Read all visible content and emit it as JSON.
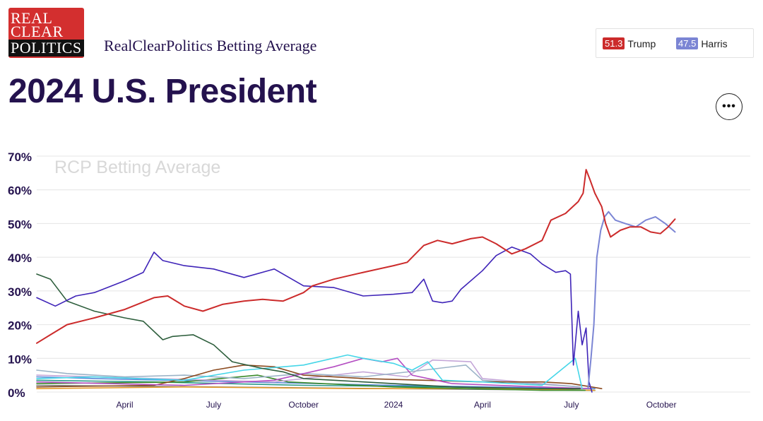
{
  "logo": {
    "lines": [
      "REAL",
      "CLEAR",
      "POLITICS"
    ]
  },
  "header": {
    "subtitle": "RealClearPolitics Betting Average",
    "title": "2024 U.S. President"
  },
  "legend": [
    {
      "value": "51.3",
      "name": "Trump",
      "color": "#cc2b2b"
    },
    {
      "value": "47.5",
      "name": "Harris",
      "color": "#7b85d4"
    }
  ],
  "more_button": {
    "icon": "ellipsis-icon",
    "label": "•••"
  },
  "chart_data": {
    "type": "line",
    "title": "",
    "watermark": "RCP Betting Average",
    "xlabel": "",
    "ylabel": "",
    "ylim": [
      0,
      70
    ],
    "y_ticks": [
      0,
      10,
      20,
      30,
      40,
      50,
      60,
      70
    ],
    "y_tick_labels": [
      "0%",
      "10%",
      "20%",
      "30%",
      "40%",
      "50%",
      "60%",
      "70%"
    ],
    "x_range": [
      "2023-01-01",
      "2024-12-31"
    ],
    "x_ticks": [
      {
        "date": "2023-04-01",
        "label": "April"
      },
      {
        "date": "2023-07-01",
        "label": "July"
      },
      {
        "date": "2023-10-01",
        "label": "October"
      },
      {
        "date": "2024-01-01",
        "label": "2024"
      },
      {
        "date": "2024-04-01",
        "label": "April"
      },
      {
        "date": "2024-07-01",
        "label": "July"
      },
      {
        "date": "2024-10-01",
        "label": "October"
      }
    ],
    "grid": true,
    "series": [
      {
        "name": "Trump",
        "color": "#cc2b2b",
        "points": [
          [
            "2023-01-01",
            14.5
          ],
          [
            "2023-01-15",
            17
          ],
          [
            "2023-02-01",
            20
          ],
          [
            "2023-03-01",
            22
          ],
          [
            "2023-04-01",
            24.5
          ],
          [
            "2023-05-01",
            28
          ],
          [
            "2023-05-15",
            28.5
          ],
          [
            "2023-06-01",
            25.5
          ],
          [
            "2023-06-20",
            24
          ],
          [
            "2023-07-10",
            26
          ],
          [
            "2023-08-01",
            27
          ],
          [
            "2023-08-20",
            27.5
          ],
          [
            "2023-09-10",
            27
          ],
          [
            "2023-10-01",
            29.5
          ],
          [
            "2023-10-10",
            31.5
          ],
          [
            "2023-11-01",
            33.5
          ],
          [
            "2023-12-01",
            35.5
          ],
          [
            "2024-01-01",
            37.5
          ],
          [
            "2024-01-15",
            38.5
          ],
          [
            "2024-02-01",
            43.5
          ],
          [
            "2024-02-15",
            45
          ],
          [
            "2024-03-01",
            44
          ],
          [
            "2024-03-20",
            45.5
          ],
          [
            "2024-04-01",
            46
          ],
          [
            "2024-04-15",
            44
          ],
          [
            "2024-05-01",
            41
          ],
          [
            "2024-05-15",
            42.5
          ],
          [
            "2024-06-01",
            45
          ],
          [
            "2024-06-10",
            51
          ],
          [
            "2024-06-25",
            53
          ],
          [
            "2024-07-08",
            56.5
          ],
          [
            "2024-07-13",
            59
          ],
          [
            "2024-07-16",
            66
          ],
          [
            "2024-07-20",
            63
          ],
          [
            "2024-07-25",
            59
          ],
          [
            "2024-08-01",
            55
          ],
          [
            "2024-08-05",
            50
          ],
          [
            "2024-08-10",
            46
          ],
          [
            "2024-08-20",
            48
          ],
          [
            "2024-08-30",
            49
          ],
          [
            "2024-09-10",
            49
          ],
          [
            "2024-09-20",
            47.5
          ],
          [
            "2024-09-30",
            47
          ],
          [
            "2024-10-08",
            49
          ],
          [
            "2024-10-15",
            51.3
          ]
        ]
      },
      {
        "name": "Harris",
        "color": "#7b85d4",
        "points": [
          [
            "2024-07-18",
            1
          ],
          [
            "2024-07-21",
            10
          ],
          [
            "2024-07-24",
            20
          ],
          [
            "2024-07-27",
            40
          ],
          [
            "2024-07-31",
            48
          ],
          [
            "2024-08-04",
            52
          ],
          [
            "2024-08-08",
            53.5
          ],
          [
            "2024-08-15",
            51
          ],
          [
            "2024-08-25",
            50
          ],
          [
            "2024-09-05",
            49
          ],
          [
            "2024-09-15",
            51
          ],
          [
            "2024-09-25",
            52
          ],
          [
            "2024-10-05",
            50
          ],
          [
            "2024-10-15",
            47.5
          ]
        ]
      },
      {
        "color": "#3f24b8",
        "points": [
          [
            "2023-01-01",
            28
          ],
          [
            "2023-01-20",
            25.5
          ],
          [
            "2023-02-10",
            28.5
          ],
          [
            "2023-03-01",
            29.5
          ],
          [
            "2023-04-01",
            33
          ],
          [
            "2023-04-20",
            35.5
          ],
          [
            "2023-05-01",
            41.5
          ],
          [
            "2023-05-10",
            39
          ],
          [
            "2023-06-01",
            37.5
          ],
          [
            "2023-07-01",
            36.5
          ],
          [
            "2023-08-01",
            34
          ],
          [
            "2023-09-01",
            36.5
          ],
          [
            "2023-10-01",
            31.5
          ],
          [
            "2023-11-01",
            31
          ],
          [
            "2023-12-01",
            28.5
          ],
          [
            "2024-01-01",
            29
          ],
          [
            "2024-01-20",
            29.5
          ],
          [
            "2024-02-01",
            33.5
          ],
          [
            "2024-02-10",
            27
          ],
          [
            "2024-02-20",
            26.5
          ],
          [
            "2024-03-01",
            27
          ],
          [
            "2024-03-10",
            30.5
          ],
          [
            "2024-04-01",
            36
          ],
          [
            "2024-04-15",
            40.5
          ],
          [
            "2024-05-01",
            43
          ],
          [
            "2024-05-20",
            41
          ],
          [
            "2024-06-01",
            38
          ],
          [
            "2024-06-15",
            35.5
          ],
          [
            "2024-06-25",
            36
          ],
          [
            "2024-06-30",
            35
          ],
          [
            "2024-07-03",
            8
          ],
          [
            "2024-07-08",
            24
          ],
          [
            "2024-07-12",
            14
          ],
          [
            "2024-07-16",
            19
          ],
          [
            "2024-07-19",
            3
          ],
          [
            "2024-07-22",
            0
          ]
        ]
      },
      {
        "color": "#2d5e3c",
        "points": [
          [
            "2023-01-01",
            35
          ],
          [
            "2023-01-15",
            33.5
          ],
          [
            "2023-02-01",
            27
          ],
          [
            "2023-03-01",
            24
          ],
          [
            "2023-04-01",
            22
          ],
          [
            "2023-04-20",
            21
          ],
          [
            "2023-05-10",
            15.5
          ],
          [
            "2023-05-20",
            16.5
          ],
          [
            "2023-06-10",
            17
          ],
          [
            "2023-07-01",
            14
          ],
          [
            "2023-07-20",
            9
          ],
          [
            "2023-08-20",
            7
          ],
          [
            "2023-09-10",
            6
          ],
          [
            "2023-10-01",
            4
          ],
          [
            "2023-11-01",
            3.5
          ],
          [
            "2024-01-01",
            2.5
          ],
          [
            "2024-03-01",
            1.5
          ],
          [
            "2024-06-01",
            1
          ],
          [
            "2024-07-10",
            1
          ]
        ]
      },
      {
        "color": "#45d6e8",
        "points": [
          [
            "2023-01-01",
            4
          ],
          [
            "2023-03-01",
            4.5
          ],
          [
            "2023-06-01",
            3.5
          ],
          [
            "2023-08-01",
            6.5
          ],
          [
            "2023-10-01",
            8
          ],
          [
            "2023-11-15",
            11
          ],
          [
            "2023-12-01",
            10
          ],
          [
            "2024-01-01",
            8.5
          ],
          [
            "2024-01-20",
            6.5
          ],
          [
            "2024-02-05",
            9
          ],
          [
            "2024-02-20",
            3.5
          ],
          [
            "2024-04-01",
            3
          ],
          [
            "2024-06-01",
            2
          ],
          [
            "2024-07-05",
            10
          ],
          [
            "2024-07-12",
            1
          ]
        ]
      },
      {
        "color": "#b44ec2",
        "points": [
          [
            "2023-01-01",
            3
          ],
          [
            "2023-06-01",
            2
          ],
          [
            "2023-09-01",
            3.5
          ],
          [
            "2023-11-01",
            7.5
          ],
          [
            "2023-12-01",
            10
          ],
          [
            "2023-12-20",
            9
          ],
          [
            "2024-01-05",
            10
          ],
          [
            "2024-01-20",
            5
          ],
          [
            "2024-03-01",
            2.5
          ],
          [
            "2024-06-01",
            1.5
          ],
          [
            "2024-07-20",
            1
          ]
        ]
      },
      {
        "color": "#8b4a1f",
        "points": [
          [
            "2023-01-01",
            1.5
          ],
          [
            "2023-05-01",
            2
          ],
          [
            "2023-06-01",
            4
          ],
          [
            "2023-07-01",
            6.5
          ],
          [
            "2023-08-01",
            8
          ],
          [
            "2023-09-01",
            7.5
          ],
          [
            "2023-10-01",
            5
          ],
          [
            "2023-12-01",
            4
          ],
          [
            "2024-02-01",
            3.5
          ],
          [
            "2024-04-01",
            3
          ],
          [
            "2024-06-01",
            3
          ],
          [
            "2024-07-01",
            2.5
          ],
          [
            "2024-08-01",
            1
          ]
        ]
      },
      {
        "color": "#9bb3c7",
        "points": [
          [
            "2023-01-01",
            6.5
          ],
          [
            "2023-02-01",
            5.5
          ],
          [
            "2023-04-01",
            4.5
          ],
          [
            "2023-06-01",
            5
          ],
          [
            "2023-08-01",
            4
          ],
          [
            "2023-10-01",
            5.5
          ],
          [
            "2023-12-01",
            4.5
          ],
          [
            "2024-02-01",
            6.5
          ],
          [
            "2024-03-15",
            8
          ],
          [
            "2024-04-01",
            3.5
          ],
          [
            "2024-07-10",
            1.5
          ]
        ]
      },
      {
        "color": "#c4a6d8",
        "points": [
          [
            "2023-01-01",
            5
          ],
          [
            "2023-05-01",
            4
          ],
          [
            "2023-09-01",
            3
          ],
          [
            "2023-12-01",
            6
          ],
          [
            "2024-01-15",
            4.5
          ],
          [
            "2024-02-10",
            9.5
          ],
          [
            "2024-03-20",
            9
          ],
          [
            "2024-04-01",
            4
          ],
          [
            "2024-07-10",
            1.5
          ]
        ]
      },
      {
        "color": "#3a8a2a",
        "points": [
          [
            "2023-01-01",
            2.5
          ],
          [
            "2023-06-01",
            3
          ],
          [
            "2023-08-15",
            5
          ],
          [
            "2023-09-15",
            3
          ],
          [
            "2024-01-01",
            1.5
          ],
          [
            "2024-06-01",
            0.5
          ],
          [
            "2024-07-15",
            0.5
          ]
        ]
      },
      {
        "color": "#e59a2a",
        "points": [
          [
            "2023-01-01",
            1
          ],
          [
            "2023-06-01",
            1.5
          ],
          [
            "2023-12-01",
            1
          ],
          [
            "2024-04-01",
            1
          ],
          [
            "2024-07-25",
            0.5
          ]
        ]
      },
      {
        "color": "#2a9a8a",
        "points": [
          [
            "2023-01-01",
            3.5
          ],
          [
            "2023-05-01",
            3
          ],
          [
            "2023-10-01",
            2
          ],
          [
            "2024-03-01",
            1.5
          ],
          [
            "2024-07-25",
            0.5
          ]
        ]
      },
      {
        "color": "#7a7a7a",
        "points": [
          [
            "2023-01-01",
            2
          ],
          [
            "2023-07-01",
            1.5
          ],
          [
            "2024-01-01",
            1
          ],
          [
            "2024-07-25",
            0.5
          ]
        ]
      },
      {
        "color": "#5a8ad8",
        "points": [
          [
            "2023-01-01",
            4.5
          ],
          [
            "2023-03-01",
            4
          ],
          [
            "2023-08-01",
            3
          ],
          [
            "2024-01-01",
            2
          ],
          [
            "2024-07-25",
            1
          ]
        ]
      }
    ]
  }
}
